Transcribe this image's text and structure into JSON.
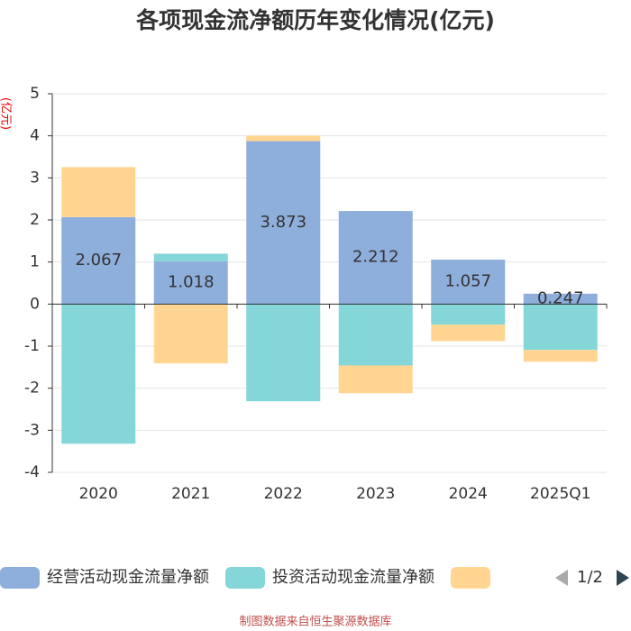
{
  "chart_data": {
    "type": "stacked-bar",
    "title": "各项现金流净额历年变化情况(亿元)",
    "y_label": "(亿元)",
    "categories": [
      "2020",
      "2021",
      "2022",
      "2023",
      "2024",
      "2025Q1"
    ],
    "series": [
      {
        "name": "经营活动现金流量净额",
        "color": "#8eaedc",
        "values": [
          2.067,
          1.018,
          3.873,
          2.212,
          1.057,
          0.247
        ]
      },
      {
        "name": "投资活动现金流量净额",
        "color": "#84d6d8",
        "values": [
          -3.32,
          0.18,
          -2.31,
          -1.46,
          -0.49,
          -1.09
        ]
      },
      {
        "color": "#ffd591",
        "values": [
          1.19,
          -1.41,
          0.13,
          -0.66,
          -0.39,
          -0.28
        ]
      }
    ],
    "label_series": 0,
    "ylim": [
      -4,
      5
    ],
    "yticks": [
      -4,
      -3,
      -2,
      -1,
      0,
      1,
      2,
      3,
      4,
      5
    ],
    "grid": true,
    "legend_page": "1/2",
    "source": "制图数据来自恒生聚源数据库"
  }
}
